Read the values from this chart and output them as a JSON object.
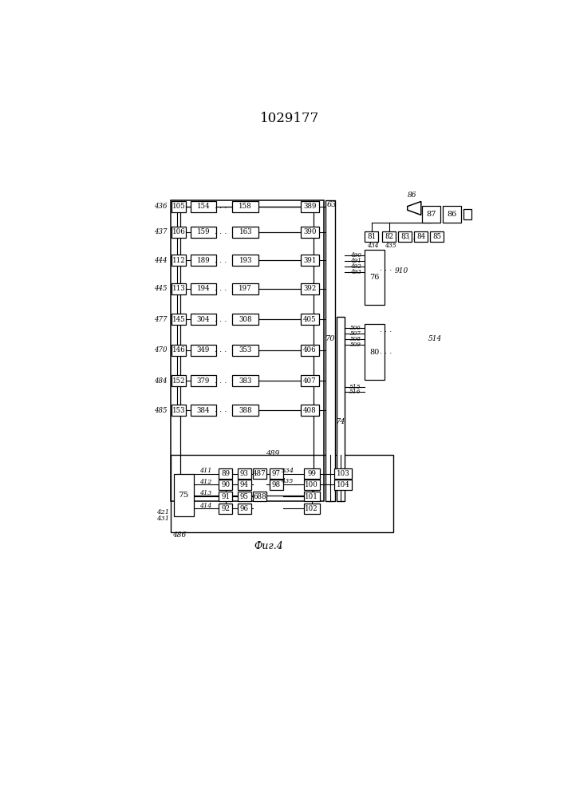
{
  "title": "1029177",
  "caption": "Фиг.4",
  "bg_color": "#ffffff",
  "title_fontsize": 12
}
